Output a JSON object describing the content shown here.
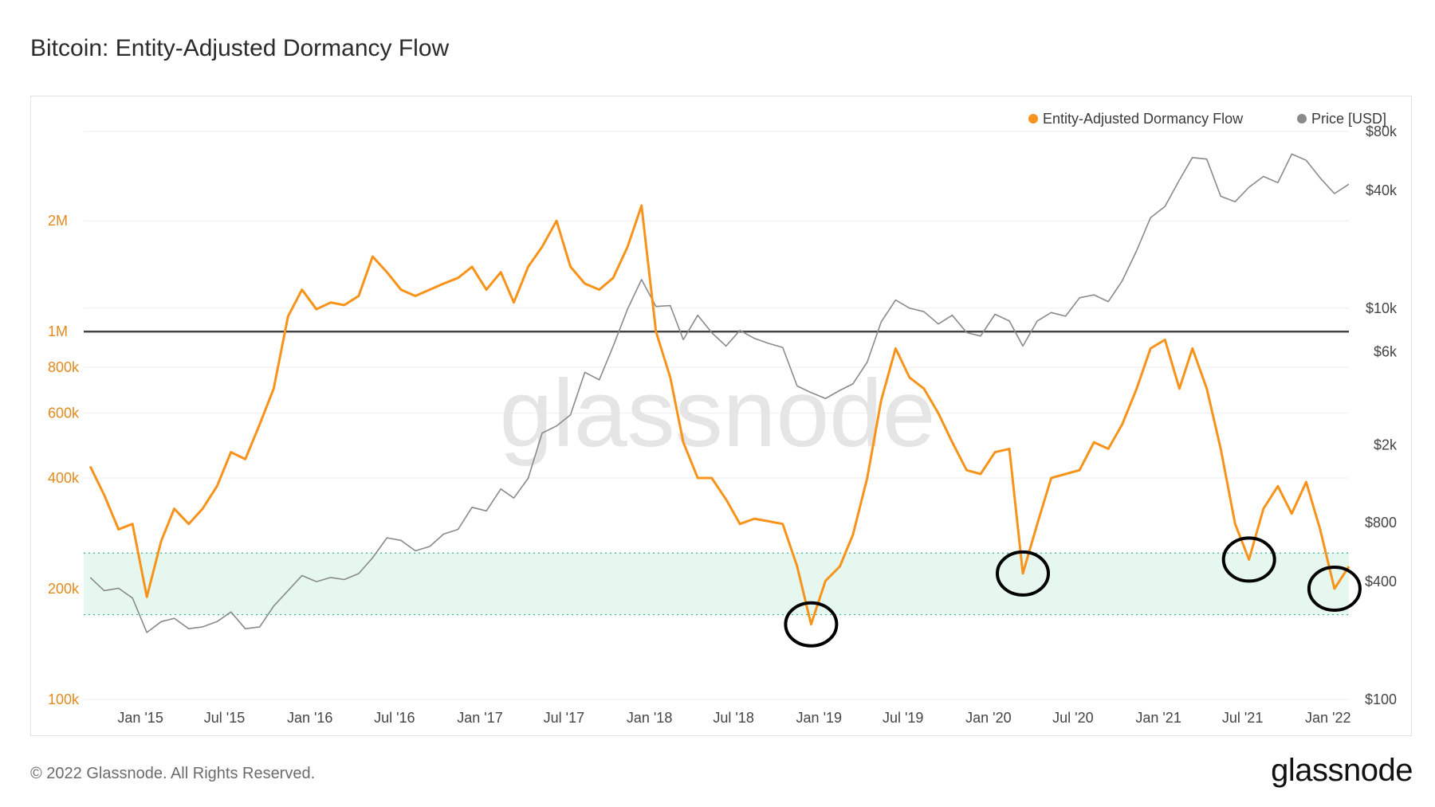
{
  "title": "Bitcoin: Entity-Adjusted Dormancy Flow",
  "footer": {
    "copyright": "© 2022 Glassnode. All Rights Reserved.",
    "logo": "glassnode"
  },
  "watermark": "glassnode",
  "colors": {
    "flow": "#f7931a",
    "price": "#8a8a8a",
    "band": "#e6f7ef",
    "band_border": "#2fb87a",
    "threshold": "#444444",
    "circle": "#000000"
  },
  "chart_data": {
    "type": "line",
    "title": "Bitcoin: Entity-Adjusted Dormancy Flow",
    "legend_placement": "top-right",
    "grid": true,
    "x_ticks": [
      "Jan '15",
      "Jul '15",
      "Jan '16",
      "Jul '16",
      "Jan '17",
      "Jul '17",
      "Jan '18",
      "Jul '18",
      "Jan '19",
      "Jul '19",
      "Jan '20",
      "Jul '20",
      "Jan '21",
      "Jul '21",
      "Jan '22"
    ],
    "xlim": [
      "2014-09",
      "2022-02"
    ],
    "y_left": {
      "scale": "log",
      "ticks": [
        "100k",
        "200k",
        "400k",
        "600k",
        "800k",
        "1M",
        "2M"
      ],
      "tick_values": [
        100000,
        200000,
        400000,
        600000,
        800000,
        1000000,
        2000000
      ],
      "range": [
        100000,
        3500000
      ]
    },
    "y_right": {
      "scale": "log",
      "ticks": [
        "$100",
        "$400",
        "$800",
        "$2k",
        "$6k",
        "$10k",
        "$40k",
        "$80k"
      ],
      "tick_values": [
        100,
        400,
        800,
        2000,
        6000,
        10000,
        40000,
        80000
      ],
      "range": [
        100,
        80000
      ]
    },
    "threshold_line": 1000000,
    "band": [
      170000,
      250000
    ],
    "circled_lows": [
      "2018-12",
      "2020-03",
      "2021-07",
      "2022-01"
    ],
    "series": [
      {
        "name": "Entity-Adjusted Dormancy Flow",
        "axis": "left",
        "color": "#f7931a",
        "points": [
          [
            "2014-09",
            430000
          ],
          [
            "2014-10",
            360000
          ],
          [
            "2014-11",
            290000
          ],
          [
            "2014-12",
            300000
          ],
          [
            "2015-01",
            190000
          ],
          [
            "2015-02",
            270000
          ],
          [
            "2015-03",
            330000
          ],
          [
            "2015-04",
            300000
          ],
          [
            "2015-05",
            330000
          ],
          [
            "2015-06",
            380000
          ],
          [
            "2015-07",
            470000
          ],
          [
            "2015-08",
            450000
          ],
          [
            "2015-09",
            560000
          ],
          [
            "2015-10",
            700000
          ],
          [
            "2015-11",
            1100000
          ],
          [
            "2015-12",
            1300000
          ],
          [
            "2016-01",
            1150000
          ],
          [
            "2016-02",
            1200000
          ],
          [
            "2016-03",
            1180000
          ],
          [
            "2016-04",
            1250000
          ],
          [
            "2016-05",
            1600000
          ],
          [
            "2016-06",
            1450000
          ],
          [
            "2016-07",
            1300000
          ],
          [
            "2016-08",
            1250000
          ],
          [
            "2016-09",
            1300000
          ],
          [
            "2016-10",
            1350000
          ],
          [
            "2016-11",
            1400000
          ],
          [
            "2016-12",
            1500000
          ],
          [
            "2017-01",
            1300000
          ],
          [
            "2017-02",
            1450000
          ],
          [
            "2017-03",
            1200000
          ],
          [
            "2017-04",
            1500000
          ],
          [
            "2017-05",
            1700000
          ],
          [
            "2017-06",
            2000000
          ],
          [
            "2017-07",
            1500000
          ],
          [
            "2017-08",
            1350000
          ],
          [
            "2017-09",
            1300000
          ],
          [
            "2017-10",
            1400000
          ],
          [
            "2017-11",
            1700000
          ],
          [
            "2017-12",
            2200000
          ],
          [
            "2018-01",
            1000000
          ],
          [
            "2018-02",
            750000
          ],
          [
            "2018-03",
            500000
          ],
          [
            "2018-04",
            400000
          ],
          [
            "2018-05",
            400000
          ],
          [
            "2018-06",
            350000
          ],
          [
            "2018-07",
            300000
          ],
          [
            "2018-08",
            310000
          ],
          [
            "2018-09",
            305000
          ],
          [
            "2018-10",
            300000
          ],
          [
            "2018-11",
            230000
          ],
          [
            "2018-12",
            160000
          ],
          [
            "2019-01",
            210000
          ],
          [
            "2019-02",
            230000
          ],
          [
            "2019-03",
            280000
          ],
          [
            "2019-04",
            400000
          ],
          [
            "2019-05",
            650000
          ],
          [
            "2019-06",
            900000
          ],
          [
            "2019-07",
            750000
          ],
          [
            "2019-08",
            700000
          ],
          [
            "2019-09",
            600000
          ],
          [
            "2019-10",
            500000
          ],
          [
            "2019-11",
            420000
          ],
          [
            "2019-12",
            410000
          ],
          [
            "2020-01",
            470000
          ],
          [
            "2020-02",
            480000
          ],
          [
            "2020-03",
            220000
          ],
          [
            "2020-04",
            300000
          ],
          [
            "2020-05",
            400000
          ],
          [
            "2020-06",
            410000
          ],
          [
            "2020-07",
            420000
          ],
          [
            "2020-08",
            500000
          ],
          [
            "2020-09",
            480000
          ],
          [
            "2020-10",
            560000
          ],
          [
            "2020-11",
            700000
          ],
          [
            "2020-12",
            900000
          ],
          [
            "2021-01",
            950000
          ],
          [
            "2021-02",
            700000
          ],
          [
            "2021-03",
            900000
          ],
          [
            "2021-04",
            700000
          ],
          [
            "2021-05",
            480000
          ],
          [
            "2021-06",
            300000
          ],
          [
            "2021-07",
            240000
          ],
          [
            "2021-08",
            330000
          ],
          [
            "2021-09",
            380000
          ],
          [
            "2021-10",
            320000
          ],
          [
            "2021-11",
            390000
          ],
          [
            "2021-12",
            290000
          ],
          [
            "2022-01",
            200000
          ],
          [
            "2022-02",
            230000
          ]
        ]
      },
      {
        "name": "Price [USD]",
        "axis": "right",
        "color": "#8a8a8a",
        "points": [
          [
            "2014-09",
            420
          ],
          [
            "2014-10",
            360
          ],
          [
            "2014-11",
            370
          ],
          [
            "2014-12",
            330
          ],
          [
            "2015-01",
            220
          ],
          [
            "2015-02",
            250
          ],
          [
            "2015-03",
            260
          ],
          [
            "2015-04",
            230
          ],
          [
            "2015-05",
            235
          ],
          [
            "2015-06",
            250
          ],
          [
            "2015-07",
            280
          ],
          [
            "2015-08",
            230
          ],
          [
            "2015-09",
            235
          ],
          [
            "2015-10",
            300
          ],
          [
            "2015-11",
            360
          ],
          [
            "2015-12",
            430
          ],
          [
            "2016-01",
            400
          ],
          [
            "2016-02",
            420
          ],
          [
            "2016-03",
            410
          ],
          [
            "2016-04",
            440
          ],
          [
            "2016-05",
            530
          ],
          [
            "2016-06",
            670
          ],
          [
            "2016-07",
            650
          ],
          [
            "2016-08",
            575
          ],
          [
            "2016-09",
            605
          ],
          [
            "2016-10",
            700
          ],
          [
            "2016-11",
            740
          ],
          [
            "2016-12",
            960
          ],
          [
            "2017-01",
            920
          ],
          [
            "2017-02",
            1190
          ],
          [
            "2017-03",
            1070
          ],
          [
            "2017-04",
            1350
          ],
          [
            "2017-05",
            2300
          ],
          [
            "2017-06",
            2500
          ],
          [
            "2017-07",
            2850
          ],
          [
            "2017-08",
            4700
          ],
          [
            "2017-09",
            4300
          ],
          [
            "2017-10",
            6400
          ],
          [
            "2017-11",
            9900
          ],
          [
            "2017-12",
            14000
          ],
          [
            "2018-01",
            10200
          ],
          [
            "2018-02",
            10300
          ],
          [
            "2018-03",
            6900
          ],
          [
            "2018-04",
            9200
          ],
          [
            "2018-05",
            7500
          ],
          [
            "2018-06",
            6400
          ],
          [
            "2018-07",
            7700
          ],
          [
            "2018-08",
            7000
          ],
          [
            "2018-09",
            6600
          ],
          [
            "2018-10",
            6300
          ],
          [
            "2018-11",
            4000
          ],
          [
            "2018-12",
            3700
          ],
          [
            "2019-01",
            3450
          ],
          [
            "2019-02",
            3800
          ],
          [
            "2019-03",
            4100
          ],
          [
            "2019-04",
            5300
          ],
          [
            "2019-05",
            8500
          ],
          [
            "2019-06",
            11000
          ],
          [
            "2019-07",
            10000
          ],
          [
            "2019-08",
            9600
          ],
          [
            "2019-09",
            8300
          ],
          [
            "2019-10",
            9200
          ],
          [
            "2019-11",
            7500
          ],
          [
            "2019-12",
            7200
          ],
          [
            "2020-01",
            9300
          ],
          [
            "2020-02",
            8600
          ],
          [
            "2020-03",
            6400
          ],
          [
            "2020-04",
            8600
          ],
          [
            "2020-05",
            9500
          ],
          [
            "2020-06",
            9100
          ],
          [
            "2020-07",
            11300
          ],
          [
            "2020-08",
            11700
          ],
          [
            "2020-09",
            10800
          ],
          [
            "2020-10",
            13800
          ],
          [
            "2020-11",
            19700
          ],
          [
            "2020-12",
            29000
          ],
          [
            "2021-01",
            33100
          ],
          [
            "2021-02",
            45200
          ],
          [
            "2021-03",
            58800
          ],
          [
            "2021-04",
            57800
          ],
          [
            "2021-05",
            37300
          ],
          [
            "2021-06",
            35000
          ],
          [
            "2021-07",
            41500
          ],
          [
            "2021-08",
            47100
          ],
          [
            "2021-09",
            43800
          ],
          [
            "2021-10",
            61300
          ],
          [
            "2021-11",
            57000
          ],
          [
            "2021-12",
            46300
          ],
          [
            "2022-01",
            38500
          ],
          [
            "2022-02",
            43000
          ]
        ]
      }
    ]
  }
}
